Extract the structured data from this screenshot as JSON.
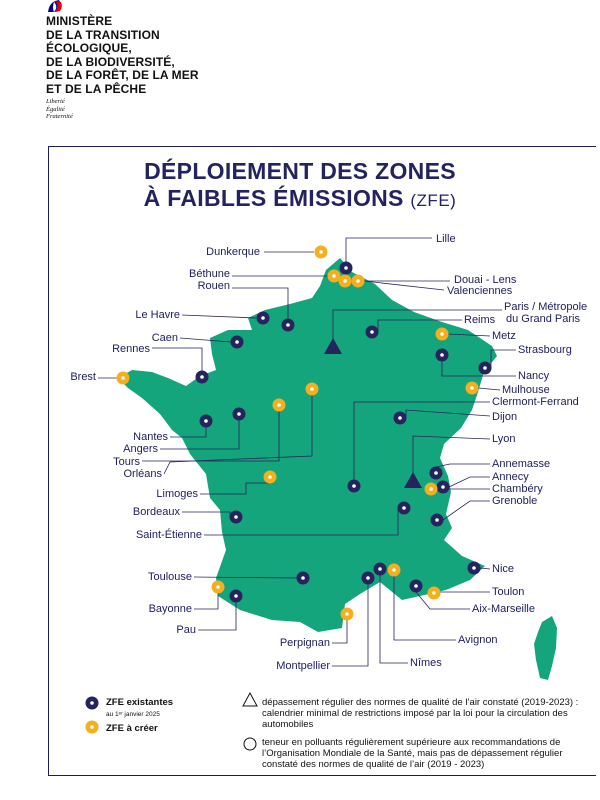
{
  "header": {
    "ministry_lines": [
      "MINISTÈRE",
      "DE LA TRANSITION",
      "ÉCOLOGIQUE,",
      "DE LA BIODIVERSITÉ,",
      "DE LA FORÊT, DE LA MER",
      "ET DE LA PÊCHE"
    ],
    "motto": [
      "Liberté",
      "Égalité",
      "Fraternité"
    ]
  },
  "title": {
    "line1": "DÉPLOIEMENT DES ZONES",
    "line2": "À FAIBLES ÉMISSIONS",
    "line2_sub": "(ZFE)"
  },
  "colors": {
    "land": "#15a57c",
    "existing": "#26245e",
    "to_create": "#f5ae1e",
    "text": "#1d1d5c"
  },
  "cities": {
    "lille": "Lille",
    "dunkerque": "Dunkerque",
    "bethune": "Béthune",
    "rouen": "Rouen",
    "douai_lens": "Douai - Lens",
    "valenciennes": "Valenciennes",
    "le_havre": "Le Havre",
    "paris_l1": "Paris / Métropole",
    "paris_l2": "du Grand Paris",
    "caen": "Caen",
    "reims": "Reims",
    "metz": "Metz",
    "rennes": "Rennes",
    "strasbourg": "Strasbourg",
    "brest": "Brest",
    "nancy": "Nancy",
    "mulhouse": "Mulhouse",
    "clermont": "Clermont-Ferrand",
    "dijon": "Dijon",
    "nantes": "Nantes",
    "angers": "Angers",
    "lyon": "Lyon",
    "tours": "Tours",
    "orleans": "Orléans",
    "annemasse": "Annemasse",
    "annecy": "Annecy",
    "chambery": "Chambéry",
    "limoges": "Limoges",
    "grenoble": "Grenoble",
    "bordeaux": "Bordeaux",
    "saint_etienne": "Saint-Étienne",
    "nice": "Nice",
    "toulouse": "Toulouse",
    "toulon": "Toulon",
    "bayonne": "Bayonne",
    "aix_marseille": "Aix-Marseille",
    "pau": "Pau",
    "avignon": "Avignon",
    "perpignan": "Perpignan",
    "montpellier": "Montpellier",
    "nimes": "Nîmes"
  },
  "legend": {
    "existing_label": "ZFE existantes",
    "existing_sub": "au 1ᵉʳ janvier 2025",
    "to_create_label": "ZFE à créer",
    "triangle_text": "dépassement régulier des normes de qualité de l’air constaté (2019-2023) : calendrier minimal de restrictions imposé par la loi pour la circulation des automobiles",
    "circle_text": "teneur en polluants régulièrement supérieure aux recommandations de l’Organisation Mondiale de la Santé, mais pas de dépassement régulier constaté des normes de qualité de l’air (2019 - 2023)"
  }
}
